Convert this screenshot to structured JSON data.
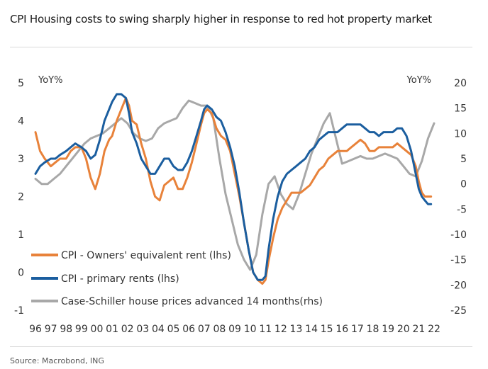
{
  "title": "CPI Housing costs to swing sharply higher in response to red hot property market",
  "source": "Source: Macrobond, ING",
  "chart_data": {
    "type": "line",
    "left_unit": "YoY%",
    "right_unit": "YoY%",
    "ylim_left": [
      -1,
      5
    ],
    "ylim_right": [
      -25,
      20
    ],
    "left_ticks": [
      "5",
      "4",
      "3",
      "2",
      "1",
      "0",
      "-1"
    ],
    "left_tick_values": [
      5,
      4,
      3,
      2,
      1,
      0,
      -1
    ],
    "right_ticks": [
      "20",
      "15",
      "10",
      "5",
      "0",
      "-5",
      "-10",
      "-15",
      "-20",
      "-25"
    ],
    "right_tick_values": [
      20,
      15,
      10,
      5,
      0,
      -5,
      -10,
      -15,
      -20,
      -25
    ],
    "xlim": [
      1996,
      2022
    ],
    "x_ticks": [
      "96",
      "97",
      "98",
      "99",
      "00",
      "01",
      "02",
      "03",
      "04",
      "05",
      "06",
      "07",
      "08",
      "09",
      "10",
      "11",
      "12",
      "13",
      "14",
      "15",
      "16",
      "17",
      "18",
      "19",
      "20",
      "21",
      "22"
    ],
    "x_tick_values": [
      1996,
      1997,
      1998,
      1999,
      2000,
      2001,
      2002,
      2003,
      2004,
      2005,
      2006,
      2007,
      2008,
      2009,
      2010,
      2011,
      2012,
      2013,
      2014,
      2015,
      2016,
      2017,
      2018,
      2019,
      2020,
      2021,
      2022
    ],
    "grid": false,
    "legend_position": "bottom-left",
    "series": [
      {
        "name": "CPI - Owners' equivalent rent (lhs)",
        "axis": "left",
        "color": "#e8823a",
        "x": [
          1996.0,
          1996.3,
          1996.6,
          1997.0,
          1997.3,
          1997.6,
          1998.0,
          1998.3,
          1998.6,
          1999.0,
          1999.3,
          1999.6,
          1999.9,
          2000.2,
          2000.5,
          2000.8,
          2001.0,
          2001.3,
          2001.6,
          2001.9,
          2002.1,
          2002.3,
          2002.6,
          2002.9,
          2003.2,
          2003.5,
          2003.8,
          2004.1,
          2004.4,
          2004.7,
          2005.0,
          2005.3,
          2005.6,
          2005.9,
          2006.2,
          2006.5,
          2006.8,
          2007.0,
          2007.2,
          2007.5,
          2007.8,
          2008.1,
          2008.4,
          2008.7,
          2009.0,
          2009.3,
          2009.6,
          2009.9,
          2010.2,
          2010.5,
          2010.8,
          2011.0,
          2011.2,
          2011.5,
          2011.8,
          2012.1,
          2012.4,
          2012.7,
          2013.0,
          2013.3,
          2013.6,
          2013.9,
          2014.2,
          2014.5,
          2014.8,
          2015.1,
          2015.4,
          2015.7,
          2016.0,
          2016.3,
          2016.6,
          2016.9,
          2017.2,
          2017.5,
          2017.8,
          2018.1,
          2018.4,
          2018.7,
          2019.0,
          2019.3,
          2019.6,
          2019.9,
          2020.2,
          2020.5,
          2020.8,
          2021.0,
          2021.2,
          2021.4,
          2021.6,
          2021.8
        ],
        "y": [
          3.7,
          3.2,
          3.0,
          2.8,
          2.9,
          3.0,
          3.0,
          3.2,
          3.3,
          3.3,
          3.0,
          2.5,
          2.2,
          2.6,
          3.2,
          3.5,
          3.6,
          4.0,
          4.3,
          4.6,
          4.4,
          4.0,
          3.9,
          3.4,
          3.0,
          2.4,
          2.0,
          1.9,
          2.3,
          2.4,
          2.5,
          2.2,
          2.2,
          2.5,
          2.9,
          3.4,
          3.9,
          4.2,
          4.3,
          4.2,
          3.8,
          3.6,
          3.5,
          3.2,
          2.6,
          2.0,
          1.3,
          0.6,
          0.0,
          -0.2,
          -0.3,
          -0.2,
          0.3,
          0.9,
          1.4,
          1.7,
          1.9,
          2.1,
          2.1,
          2.1,
          2.2,
          2.3,
          2.5,
          2.7,
          2.8,
          3.0,
          3.1,
          3.2,
          3.2,
          3.2,
          3.3,
          3.4,
          3.5,
          3.4,
          3.2,
          3.2,
          3.3,
          3.3,
          3.3,
          3.3,
          3.4,
          3.3,
          3.2,
          3.1,
          2.8,
          2.4,
          2.1,
          2.0,
          2.0,
          2.0
        ]
      },
      {
        "name": "CPI - primary rents (lhs)",
        "axis": "left",
        "color": "#1b5e9f",
        "x": [
          1996.0,
          1996.3,
          1996.6,
          1997.0,
          1997.3,
          1997.6,
          1998.0,
          1998.3,
          1998.6,
          1999.0,
          1999.3,
          1999.6,
          1999.9,
          2000.2,
          2000.5,
          2000.8,
          2001.0,
          2001.3,
          2001.6,
          2001.9,
          2002.1,
          2002.3,
          2002.6,
          2002.9,
          2003.2,
          2003.5,
          2003.8,
          2004.1,
          2004.4,
          2004.7,
          2005.0,
          2005.3,
          2005.6,
          2005.9,
          2006.2,
          2006.5,
          2006.8,
          2007.0,
          2007.2,
          2007.5,
          2007.8,
          2008.1,
          2008.4,
          2008.7,
          2009.0,
          2009.3,
          2009.6,
          2009.9,
          2010.2,
          2010.5,
          2010.8,
          2011.0,
          2011.2,
          2011.5,
          2011.8,
          2012.1,
          2012.4,
          2012.7,
          2013.0,
          2013.3,
          2013.6,
          2013.9,
          2014.2,
          2014.5,
          2014.8,
          2015.1,
          2015.4,
          2015.7,
          2016.0,
          2016.3,
          2016.6,
          2016.9,
          2017.2,
          2017.5,
          2017.8,
          2018.1,
          2018.4,
          2018.7,
          2019.0,
          2019.3,
          2019.6,
          2019.9,
          2020.2,
          2020.5,
          2020.8,
          2021.0,
          2021.2,
          2021.4,
          2021.6,
          2021.8
        ],
        "y": [
          2.6,
          2.8,
          2.9,
          3.0,
          3.0,
          3.1,
          3.2,
          3.3,
          3.4,
          3.3,
          3.2,
          3.0,
          3.1,
          3.5,
          4.0,
          4.3,
          4.5,
          4.7,
          4.7,
          4.6,
          4.2,
          3.7,
          3.4,
          3.0,
          2.8,
          2.6,
          2.6,
          2.8,
          3.0,
          3.0,
          2.8,
          2.7,
          2.7,
          2.9,
          3.2,
          3.6,
          4.0,
          4.3,
          4.4,
          4.3,
          4.1,
          4.0,
          3.7,
          3.3,
          2.8,
          2.1,
          1.3,
          0.6,
          0.0,
          -0.2,
          -0.2,
          -0.1,
          0.6,
          1.4,
          2.0,
          2.4,
          2.6,
          2.7,
          2.8,
          2.9,
          3.0,
          3.2,
          3.3,
          3.5,
          3.6,
          3.7,
          3.7,
          3.7,
          3.8,
          3.9,
          3.9,
          3.9,
          3.9,
          3.8,
          3.7,
          3.7,
          3.6,
          3.7,
          3.7,
          3.7,
          3.8,
          3.8,
          3.6,
          3.2,
          2.6,
          2.2,
          2.0,
          1.9,
          1.8,
          1.8
        ]
      },
      {
        "name": "Case-Schiller house prices advanced 14 months(rhs)",
        "axis": "right",
        "color": "#a8a8a8",
        "x": [
          1996.0,
          1996.4,
          1996.8,
          1997.2,
          1997.6,
          1998.0,
          1998.4,
          1998.8,
          1999.2,
          1999.6,
          2000.0,
          2000.4,
          2000.8,
          2001.2,
          2001.6,
          2002.0,
          2002.4,
          2002.8,
          2003.2,
          2003.6,
          2004.0,
          2004.4,
          2004.8,
          2005.2,
          2005.6,
          2006.0,
          2006.4,
          2006.8,
          2007.2,
          2007.6,
          2008.0,
          2008.4,
          2008.8,
          2009.2,
          2009.6,
          2010.0,
          2010.4,
          2010.8,
          2011.2,
          2011.6,
          2012.0,
          2012.4,
          2012.8,
          2013.2,
          2013.6,
          2014.0,
          2014.4,
          2014.8,
          2015.2,
          2015.6,
          2016.0,
          2016.4,
          2016.8,
          2017.2,
          2017.6,
          2018.0,
          2018.4,
          2018.8,
          2019.2,
          2019.6,
          2020.0,
          2020.4,
          2020.8,
          2021.2,
          2021.6,
          2022.0
        ],
        "y": [
          1.0,
          0.0,
          0.0,
          1.0,
          2.0,
          3.5,
          5.0,
          6.5,
          8.0,
          9.0,
          9.5,
          10.0,
          11.0,
          12.0,
          13.0,
          12.0,
          10.0,
          9.0,
          8.5,
          9.0,
          11.0,
          12.0,
          12.5,
          13.0,
          15.0,
          16.5,
          16.0,
          15.5,
          15.5,
          13.0,
          5.0,
          -2.0,
          -7.0,
          -12.0,
          -15.0,
          -17.0,
          -14.0,
          -6.0,
          0.0,
          1.5,
          -2.0,
          -4.0,
          -5.0,
          -2.0,
          2.0,
          6.0,
          9.0,
          12.0,
          14.0,
          9.0,
          4.0,
          4.5,
          5.0,
          5.5,
          5.0,
          5.0,
          5.5,
          6.0,
          5.5,
          5.0,
          3.5,
          2.0,
          1.5,
          4.5,
          9.0,
          12.0
        ]
      }
    ]
  }
}
